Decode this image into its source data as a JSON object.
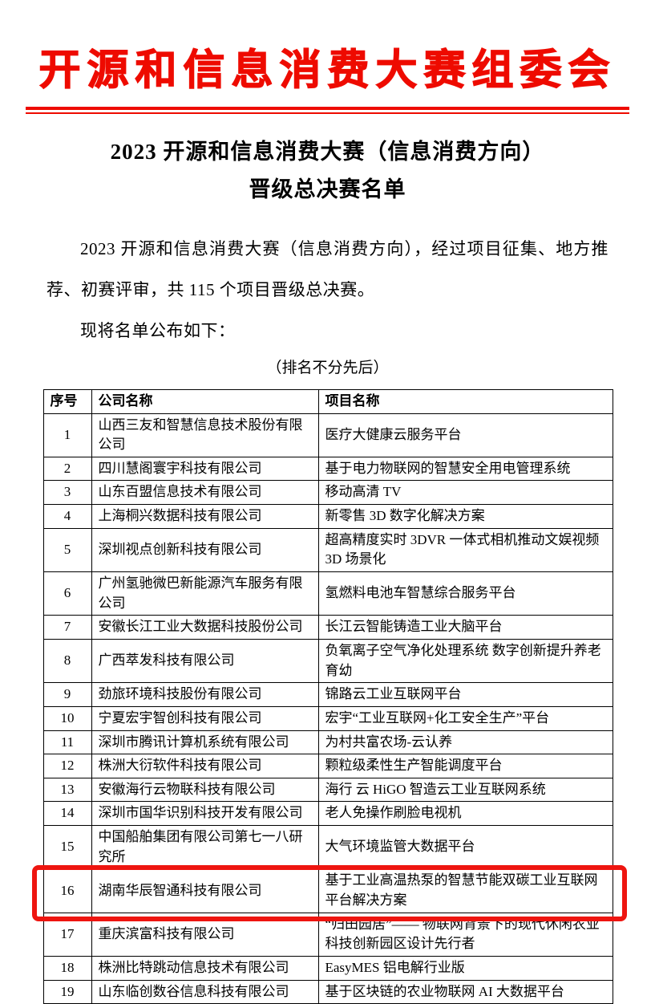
{
  "masthead": {
    "text": "开源和信息消费大赛组委会"
  },
  "title": {
    "line1": "2023 开源和信息消费大赛（信息消费方向）",
    "line2": "晋级总决赛名单"
  },
  "body": {
    "paragraph1": "2023 开源和信息消费大赛（信息消费方向），经过项目征集、地方推荐、初赛评审，共 115 个项目晋级总决赛。",
    "paragraph2": "现将名单公布如下：",
    "note": "（排名不分先后）"
  },
  "colors": {
    "accent_red": "#ee0b00",
    "highlight_red": "#ee1510",
    "text": "#000000"
  },
  "table": {
    "headers": [
      "序号",
      "公司名称",
      "项目名称"
    ],
    "highlight": {
      "row_no": 16
    },
    "rows": [
      {
        "no": "1",
        "company": "山西三友和智慧信息技术股份有限公司",
        "project": "医疗大健康云服务平台"
      },
      {
        "no": "2",
        "company": "四川慧阁寰宇科技有限公司",
        "project": "基于电力物联网的智慧安全用电管理系统"
      },
      {
        "no": "3",
        "company": "山东百盟信息技术有限公司",
        "project": "移动高清 TV"
      },
      {
        "no": "4",
        "company": "上海桐兴数据科技有限公司",
        "project": "新零售 3D 数字化解决方案"
      },
      {
        "no": "5",
        "company": "深圳视点创新科技有限公司",
        "project": "超高精度实时 3DVR 一体式相机推动文娱视频3D 场景化"
      },
      {
        "no": "6",
        "company": "广州氢驰微巴新能源汽车服务有限公司",
        "project": "氢燃料电池车智慧综合服务平台"
      },
      {
        "no": "7",
        "company": "安徽长江工业大数据科技股份公司",
        "project": "长江云智能铸造工业大脑平台"
      },
      {
        "no": "8",
        "company": "广西萃发科技有限公司",
        "project": "负氧离子空气净化处理系统 数字创新提升养老育幼"
      },
      {
        "no": "9",
        "company": "劲旅环境科技股份有限公司",
        "project": "锦路云工业互联网平台"
      },
      {
        "no": "10",
        "company": "宁夏宏宇智创科技有限公司",
        "project": "宏宇“工业互联网+化工安全生产”平台"
      },
      {
        "no": "11",
        "company": "深圳市腾讯计算机系统有限公司",
        "project": "为村共富农场-云认养"
      },
      {
        "no": "12",
        "company": "株洲大衍软件科技有限公司",
        "project": "颗粒级柔性生产智能调度平台"
      },
      {
        "no": "13",
        "company": "安徽海行云物联科技有限公司",
        "project": "海行 云 HiGO 智造云工业互联网系统"
      },
      {
        "no": "14",
        "company": "深圳市国华识别科技开发有限公司",
        "project": "老人免操作刷脸电视机"
      },
      {
        "no": "15",
        "company": "中国船舶集团有限公司第七一八研究所",
        "project": "大气环境监管大数据平台"
      },
      {
        "no": "16",
        "company": "湖南华辰智通科技有限公司",
        "project": "基于工业高温热泵的智慧节能双碳工业互联网平台解决方案"
      },
      {
        "no": "17",
        "company": "重庆滨富科技有限公司",
        "project": "“归田园居”—— 物联网背景下的现代休闲农业科技创新园区设计先行者"
      },
      {
        "no": "18",
        "company": "株洲比特跳动信息技术有限公司",
        "project": "EasyMES 铝电解行业版"
      },
      {
        "no": "19",
        "company": "山东临创数谷信息科技有限公司",
        "project": "基于区块链的农业物联网 AI 大数据平台"
      }
    ]
  }
}
